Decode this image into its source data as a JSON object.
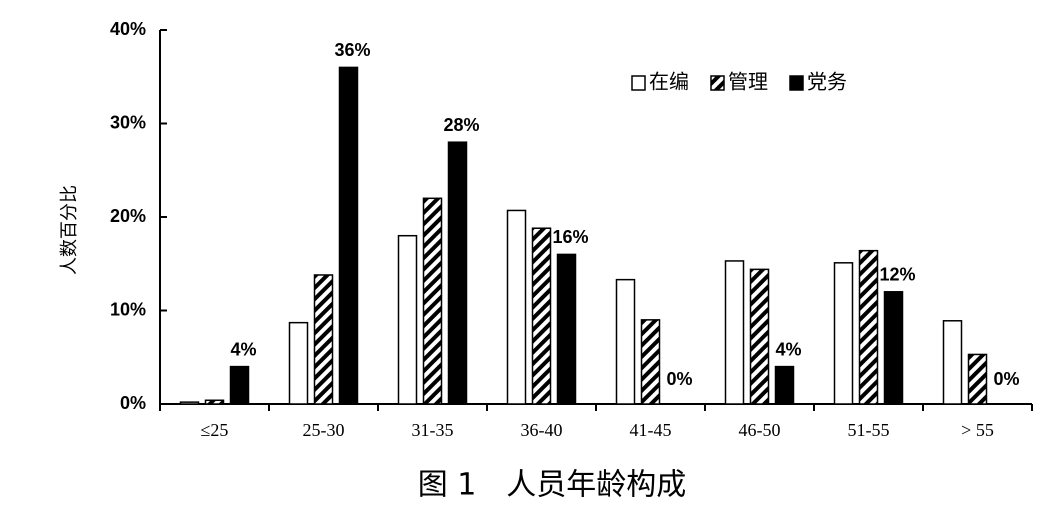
{
  "chart_data": {
    "type": "bar",
    "title": "图 1　人员年龄构成",
    "y_label": "人数百分比",
    "categories": [
      "≤25",
      "25-30",
      "31-35",
      "36-40",
      "41-45",
      "46-50",
      "51-55",
      "> 55"
    ],
    "series": [
      {
        "name": "在编",
        "color": "#ffffff",
        "values": [
          0.2,
          8.7,
          18,
          20.7,
          13.3,
          15.3,
          15.1,
          8.9
        ]
      },
      {
        "name": "管理",
        "color": "#000000",
        "hatch": true,
        "values": [
          0.4,
          13.8,
          22,
          18.8,
          9,
          14.4,
          16.4,
          5.3
        ]
      },
      {
        "name": "党务",
        "color": "#000000",
        "values": [
          4,
          36,
          28,
          16,
          0,
          4,
          12,
          0
        ],
        "value_labels": [
          "4%",
          "36%",
          "28%",
          "16%",
          "0%",
          "4%",
          "12%",
          "0%"
        ]
      }
    ],
    "ylim": [
      0,
      40
    ],
    "yticks": [
      {
        "value": 0,
        "label": "0%"
      },
      {
        "value": 10,
        "label": "10%"
      },
      {
        "value": 20,
        "label": "20%"
      },
      {
        "value": 30,
        "label": "30%"
      },
      {
        "value": 40,
        "label": "40%"
      }
    ],
    "legend": "top-right"
  }
}
